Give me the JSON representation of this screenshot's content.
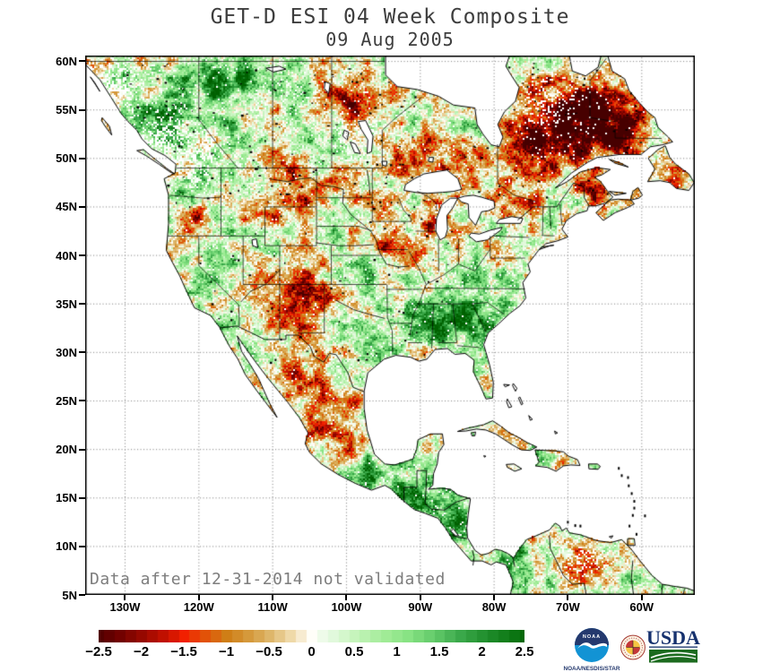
{
  "title": "GET-D ESI 04 Week Composite",
  "date": "09 Aug 2005",
  "note": "Data after 12-31-2014 not validated",
  "axes": {
    "lat_labels": [
      "60N",
      "55N",
      "50N",
      "45N",
      "40N",
      "35N",
      "30N",
      "25N",
      "20N",
      "15N",
      "10N",
      "5N"
    ],
    "lon_labels": [
      "130W",
      "120W",
      "110W",
      "100W",
      "90W",
      "80W",
      "70W",
      "60W"
    ]
  },
  "colorbar": {
    "min": -2.5,
    "max": 2.5,
    "labels": [
      "−2.5",
      "−2",
      "−1.5",
      "−1",
      "−0.5",
      "0",
      "0.5",
      "1",
      "1.5",
      "2",
      "2.5"
    ],
    "gradient": [
      [
        "-2.5",
        "#5f0000"
      ],
      [
        "-2",
        "#960800"
      ],
      [
        "-1.5",
        "#f22000"
      ],
      [
        "-1",
        "#cf7e16"
      ],
      [
        "-0.5",
        "#dfbb72"
      ],
      [
        "0",
        "#fffef8"
      ],
      [
        "0.5",
        "#c2f3b8"
      ],
      [
        "1",
        "#98ea90"
      ],
      [
        "1.5",
        "#5cc566"
      ],
      [
        "2",
        "#218e2d"
      ],
      [
        "2.5",
        "#006000"
      ]
    ]
  },
  "logos": {
    "noaa": {
      "label": "NOAA",
      "caption": "NOAA/NESDIS/STAR",
      "navy": "#24396e",
      "blue": "#1293d4"
    },
    "umd": {
      "name": "University of Maryland",
      "red": "#c43838",
      "gold": "#f6c542"
    },
    "usda": {
      "label": "USDA",
      "navy": "#16316e",
      "green": "#1c6b1f"
    }
  }
}
